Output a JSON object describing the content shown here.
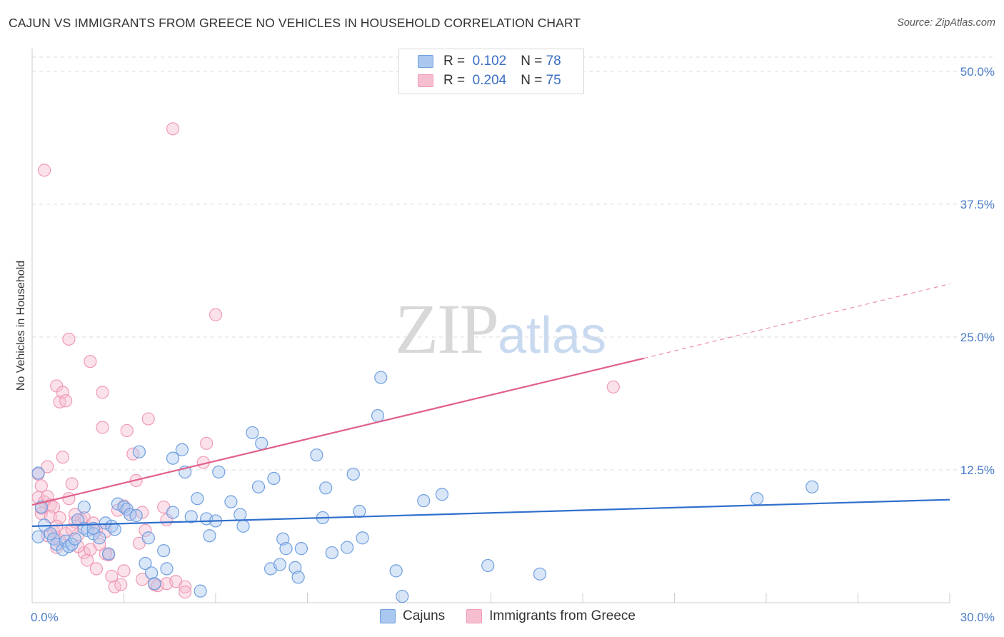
{
  "title": "CAJUN VS IMMIGRANTS FROM GREECE NO VEHICLES IN HOUSEHOLD CORRELATION CHART",
  "source": "Source: ZipAtlas.com",
  "watermark": {
    "zip": "ZIP",
    "atlas": "atlas"
  },
  "colors": {
    "cajun_fill": "#aac8ef",
    "cajun_stroke": "#6f9fe0",
    "cajun_line": "#2f6fcc",
    "greece_fill": "#f6bfd0",
    "greece_stroke": "#ef9ab6",
    "greece_line": "#e2608a",
    "grid": "#dddddd",
    "label": "#4a7cc7"
  },
  "legend": {
    "r_label": "R =",
    "n_label": "N =",
    "cajun": {
      "r": "0.102",
      "n": "78"
    },
    "greece": {
      "r": "0.204",
      "n": "75"
    }
  },
  "bottom_legend": {
    "cajun": "Cajuns",
    "greece": "Immigrants from Greece"
  },
  "chart_data": {
    "type": "scatter",
    "title": "CAJUN VS IMMIGRANTS FROM GREECE NO VEHICLES IN HOUSEHOLD CORRELATION CHART",
    "xlabel": "",
    "ylabel": "No Vehicles in Household",
    "xlim": [
      0,
      30
    ],
    "ylim": [
      0,
      50
    ],
    "x_ticks": [
      "0.0%",
      "30.0%"
    ],
    "y_ticks": [
      "12.5%",
      "25.0%",
      "37.5%",
      "50.0%"
    ],
    "y_tick_values": [
      12.5,
      25.0,
      37.5,
      50.0
    ],
    "series": [
      {
        "name": "Cajuns",
        "r": 0.102,
        "n": 78,
        "trend": {
          "x0": 0,
          "y0": 7.2,
          "x1": 30,
          "y1": 9.7
        },
        "points": [
          [
            0.2,
            12.2
          ],
          [
            0.2,
            6.2
          ],
          [
            0.4,
            7.3
          ],
          [
            0.6,
            6.5
          ],
          [
            0.7,
            6.0
          ],
          [
            0.8,
            5.5
          ],
          [
            1.0,
            5.0
          ],
          [
            1.1,
            5.8
          ],
          [
            1.2,
            5.3
          ],
          [
            1.3,
            5.5
          ],
          [
            1.4,
            6.0
          ],
          [
            1.5,
            7.8
          ],
          [
            1.7,
            7.0
          ],
          [
            1.8,
            6.8
          ],
          [
            2.0,
            6.5
          ],
          [
            2.2,
            6.1
          ],
          [
            2.4,
            7.5
          ],
          [
            2.6,
            7.2
          ],
          [
            2.7,
            6.9
          ],
          [
            2.5,
            4.6
          ],
          [
            2.8,
            9.3
          ],
          [
            3.0,
            9.0
          ],
          [
            3.1,
            8.8
          ],
          [
            3.2,
            8.3
          ],
          [
            3.4,
            8.2
          ],
          [
            3.5,
            14.2
          ],
          [
            3.7,
            3.7
          ],
          [
            3.8,
            6.1
          ],
          [
            3.9,
            2.8
          ],
          [
            4.0,
            1.8
          ],
          [
            4.3,
            4.9
          ],
          [
            4.4,
            3.2
          ],
          [
            4.6,
            8.5
          ],
          [
            4.6,
            13.6
          ],
          [
            4.9,
            14.4
          ],
          [
            5.0,
            12.3
          ],
          [
            5.2,
            8.1
          ],
          [
            5.4,
            9.8
          ],
          [
            5.5,
            1.1
          ],
          [
            5.7,
            7.9
          ],
          [
            5.8,
            6.3
          ],
          [
            6.0,
            7.7
          ],
          [
            6.1,
            12.3
          ],
          [
            6.5,
            9.5
          ],
          [
            6.8,
            8.3
          ],
          [
            6.9,
            7.2
          ],
          [
            7.2,
            16.0
          ],
          [
            7.4,
            10.9
          ],
          [
            7.5,
            15.0
          ],
          [
            7.8,
            3.2
          ],
          [
            7.9,
            11.7
          ],
          [
            8.1,
            3.6
          ],
          [
            8.2,
            6.0
          ],
          [
            8.3,
            5.1
          ],
          [
            8.6,
            3.3
          ],
          [
            8.7,
            2.4
          ],
          [
            8.8,
            5.1
          ],
          [
            9.3,
            13.9
          ],
          [
            9.5,
            8.0
          ],
          [
            9.6,
            10.8
          ],
          [
            9.8,
            4.7
          ],
          [
            10.3,
            5.2
          ],
          [
            10.5,
            12.1
          ],
          [
            10.7,
            8.6
          ],
          [
            10.8,
            6.1
          ],
          [
            11.3,
            17.6
          ],
          [
            11.4,
            21.2
          ],
          [
            11.9,
            3.0
          ],
          [
            12.1,
            0.6
          ],
          [
            12.8,
            9.6
          ],
          [
            13.4,
            10.2
          ],
          [
            14.9,
            3.5
          ],
          [
            16.6,
            2.7
          ],
          [
            23.7,
            9.8
          ],
          [
            25.5,
            10.9
          ],
          [
            0.3,
            9.0
          ],
          [
            1.7,
            9.0
          ],
          [
            2.0,
            7.0
          ]
        ]
      },
      {
        "name": "Immigrants from Greece",
        "r": 0.204,
        "n": 75,
        "trend": {
          "x0": 0,
          "y0": 9.2,
          "x1": 20,
          "y1": 23.0
        },
        "trend_dashed": {
          "x0": 20,
          "y0": 23.0,
          "x1": 30,
          "y1": 30.0
        },
        "points": [
          [
            0.2,
            12.1
          ],
          [
            0.3,
            11.0
          ],
          [
            0.2,
            9.9
          ],
          [
            0.4,
            9.5
          ],
          [
            0.5,
            10.0
          ],
          [
            0.6,
            9.2
          ],
          [
            0.7,
            9.0
          ],
          [
            0.3,
            8.4
          ],
          [
            0.4,
            40.7
          ],
          [
            0.5,
            12.8
          ],
          [
            0.6,
            8.1
          ],
          [
            0.7,
            6.7
          ],
          [
            0.8,
            5.2
          ],
          [
            0.8,
            20.4
          ],
          [
            0.9,
            18.9
          ],
          [
            1.0,
            19.8
          ],
          [
            1.1,
            19.0
          ],
          [
            1.0,
            13.7
          ],
          [
            1.2,
            24.8
          ],
          [
            1.3,
            11.2
          ],
          [
            1.4,
            7.6
          ],
          [
            1.5,
            6.4
          ],
          [
            1.6,
            7.8
          ],
          [
            1.7,
            4.7
          ],
          [
            1.7,
            8.0
          ],
          [
            1.8,
            4.0
          ],
          [
            1.9,
            22.7
          ],
          [
            2.0,
            7.5
          ],
          [
            2.1,
            6.8
          ],
          [
            2.2,
            5.5
          ],
          [
            2.3,
            16.5
          ],
          [
            2.3,
            19.8
          ],
          [
            2.4,
            6.7
          ],
          [
            2.5,
            4.5
          ],
          [
            2.6,
            2.5
          ],
          [
            2.7,
            1.5
          ],
          [
            2.8,
            8.7
          ],
          [
            3.0,
            9.1
          ],
          [
            3.0,
            3.0
          ],
          [
            3.1,
            16.2
          ],
          [
            3.2,
            8.3
          ],
          [
            3.3,
            14.0
          ],
          [
            3.4,
            11.5
          ],
          [
            3.5,
            5.6
          ],
          [
            3.6,
            8.5
          ],
          [
            3.7,
            6.8
          ],
          [
            3.8,
            17.3
          ],
          [
            4.0,
            1.7
          ],
          [
            4.1,
            1.6
          ],
          [
            4.3,
            9.0
          ],
          [
            4.4,
            7.8
          ],
          [
            4.4,
            1.8
          ],
          [
            4.6,
            44.6
          ],
          [
            4.7,
            2.0
          ],
          [
            5.0,
            1.5
          ],
          [
            5.0,
            1.0
          ],
          [
            5.6,
            13.2
          ],
          [
            5.7,
            15.0
          ],
          [
            6.0,
            27.1
          ],
          [
            0.9,
            5.9
          ],
          [
            1.1,
            6.5
          ],
          [
            1.3,
            6.9
          ],
          [
            1.5,
            5.3
          ],
          [
            0.5,
            6.3
          ],
          [
            0.9,
            8.0
          ],
          [
            1.2,
            9.8
          ],
          [
            1.4,
            8.3
          ],
          [
            1.9,
            5.0
          ],
          [
            2.1,
            3.2
          ],
          [
            2.4,
            4.6
          ],
          [
            2.9,
            1.7
          ],
          [
            3.6,
            2.2
          ],
          [
            19.0,
            20.3
          ],
          [
            0.3,
            8.9
          ],
          [
            0.8,
            7.2
          ]
        ]
      }
    ]
  }
}
